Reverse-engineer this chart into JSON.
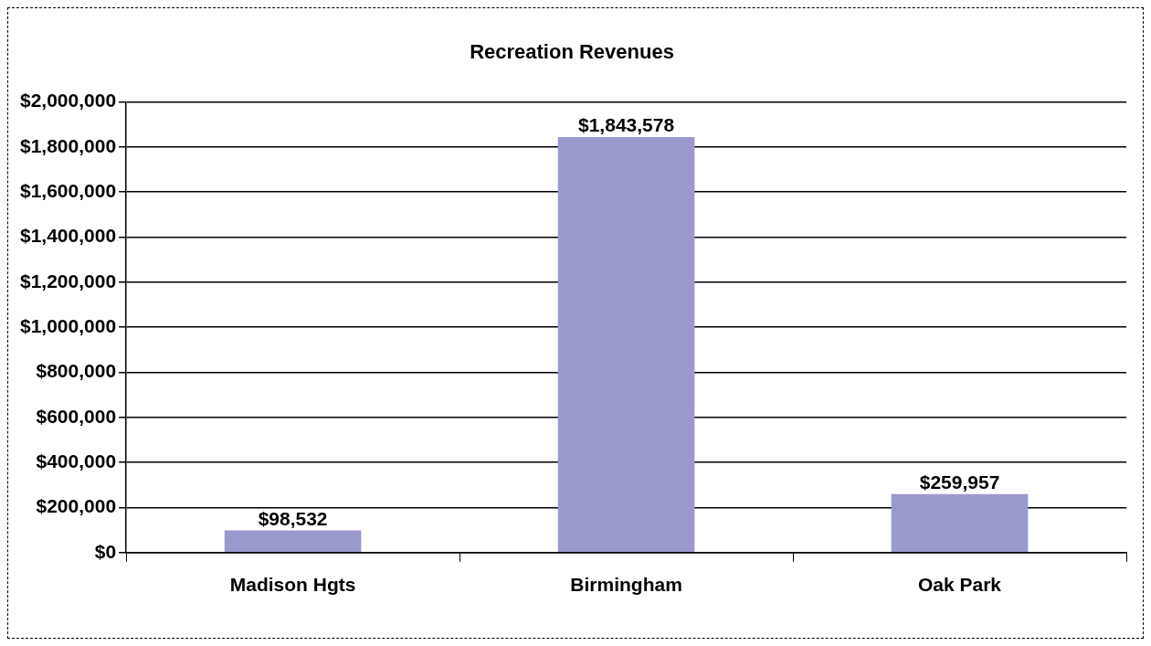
{
  "chart_data": {
    "type": "bar",
    "title": "Recreation Revenues",
    "categories": [
      "Madison Hgts",
      "Birmingham",
      "Oak Park"
    ],
    "values": [
      98532,
      1843578,
      259957
    ],
    "value_labels": [
      "$98,532",
      "$1,843,578",
      "$259,957"
    ],
    "color": "#9999cc",
    "ylim": [
      0,
      2000000
    ],
    "yticks": [
      {
        "value": 0,
        "label": "$0"
      },
      {
        "value": 200000,
        "label": "$200,000"
      },
      {
        "value": 400000,
        "label": "$400,000"
      },
      {
        "value": 600000,
        "label": "$600,000"
      },
      {
        "value": 800000,
        "label": "$800,000"
      },
      {
        "value": 1000000,
        "label": "$1,000,000"
      },
      {
        "value": 1200000,
        "label": "$1,200,000"
      },
      {
        "value": 1400000,
        "label": "$1,400,000"
      },
      {
        "value": 1600000,
        "label": "$1,600,000"
      },
      {
        "value": 1800000,
        "label": "$1,800,000"
      },
      {
        "value": 2000000,
        "label": "$2,000,000"
      }
    ],
    "grid": "y",
    "legend": false
  }
}
